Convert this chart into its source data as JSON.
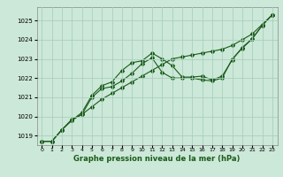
{
  "xlabel": "Graphe pression niveau de la mer (hPa)",
  "xlim": [
    -0.5,
    23.5
  ],
  "ylim": [
    1018.5,
    1025.7
  ],
  "yticks": [
    1019,
    1020,
    1021,
    1022,
    1023,
    1024,
    1025
  ],
  "xticks": [
    0,
    1,
    2,
    3,
    4,
    5,
    6,
    7,
    8,
    9,
    10,
    11,
    12,
    13,
    14,
    15,
    16,
    17,
    18,
    19,
    20,
    21,
    22,
    23
  ],
  "bg_color": "#cce8d8",
  "grid_color": "#aacfbe",
  "line_color": "#1a5c1a",
  "line1_x": [
    0,
    1,
    2,
    3,
    4,
    5,
    6,
    7,
    8,
    9,
    10,
    11,
    12,
    13,
    14,
    15,
    16,
    17,
    18,
    19,
    20,
    21,
    22,
    23
  ],
  "line1_y": [
    1018.7,
    1018.7,
    1019.3,
    1019.8,
    1020.1,
    1020.5,
    1020.9,
    1021.2,
    1021.5,
    1021.8,
    1022.1,
    1022.4,
    1022.7,
    1023.0,
    1023.1,
    1023.2,
    1023.3,
    1023.4,
    1023.5,
    1023.7,
    1024.0,
    1024.3,
    1024.8,
    1025.3
  ],
  "line2_x": [
    0,
    1,
    2,
    3,
    4,
    5,
    6,
    7,
    8,
    9,
    10,
    11,
    12,
    13,
    14,
    15,
    16,
    17,
    18,
    19,
    20,
    21,
    22,
    23
  ],
  "line2_y": [
    1018.7,
    1018.7,
    1019.3,
    1019.8,
    1020.2,
    1021.1,
    1021.6,
    1021.8,
    1022.4,
    1022.8,
    1022.9,
    1023.3,
    1023.0,
    1022.65,
    1022.05,
    1022.05,
    1022.1,
    1021.9,
    1022.1,
    1022.95,
    1023.6,
    1024.05,
    1024.75,
    1025.3
  ],
  "line3_x": [
    0,
    1,
    2,
    3,
    4,
    5,
    6,
    7,
    8,
    9,
    10,
    11,
    12,
    13,
    14,
    15,
    16,
    17,
    18,
    19,
    20,
    21,
    22,
    23
  ],
  "line3_y": [
    1018.7,
    1018.7,
    1019.3,
    1019.85,
    1020.1,
    1021.0,
    1021.45,
    1021.55,
    1021.85,
    1022.25,
    1022.75,
    1023.05,
    1022.3,
    1022.0,
    1022.0,
    1022.0,
    1021.9,
    1021.85,
    1022.0,
    1023.0,
    1023.55,
    1024.05,
    1024.75,
    1025.3
  ]
}
